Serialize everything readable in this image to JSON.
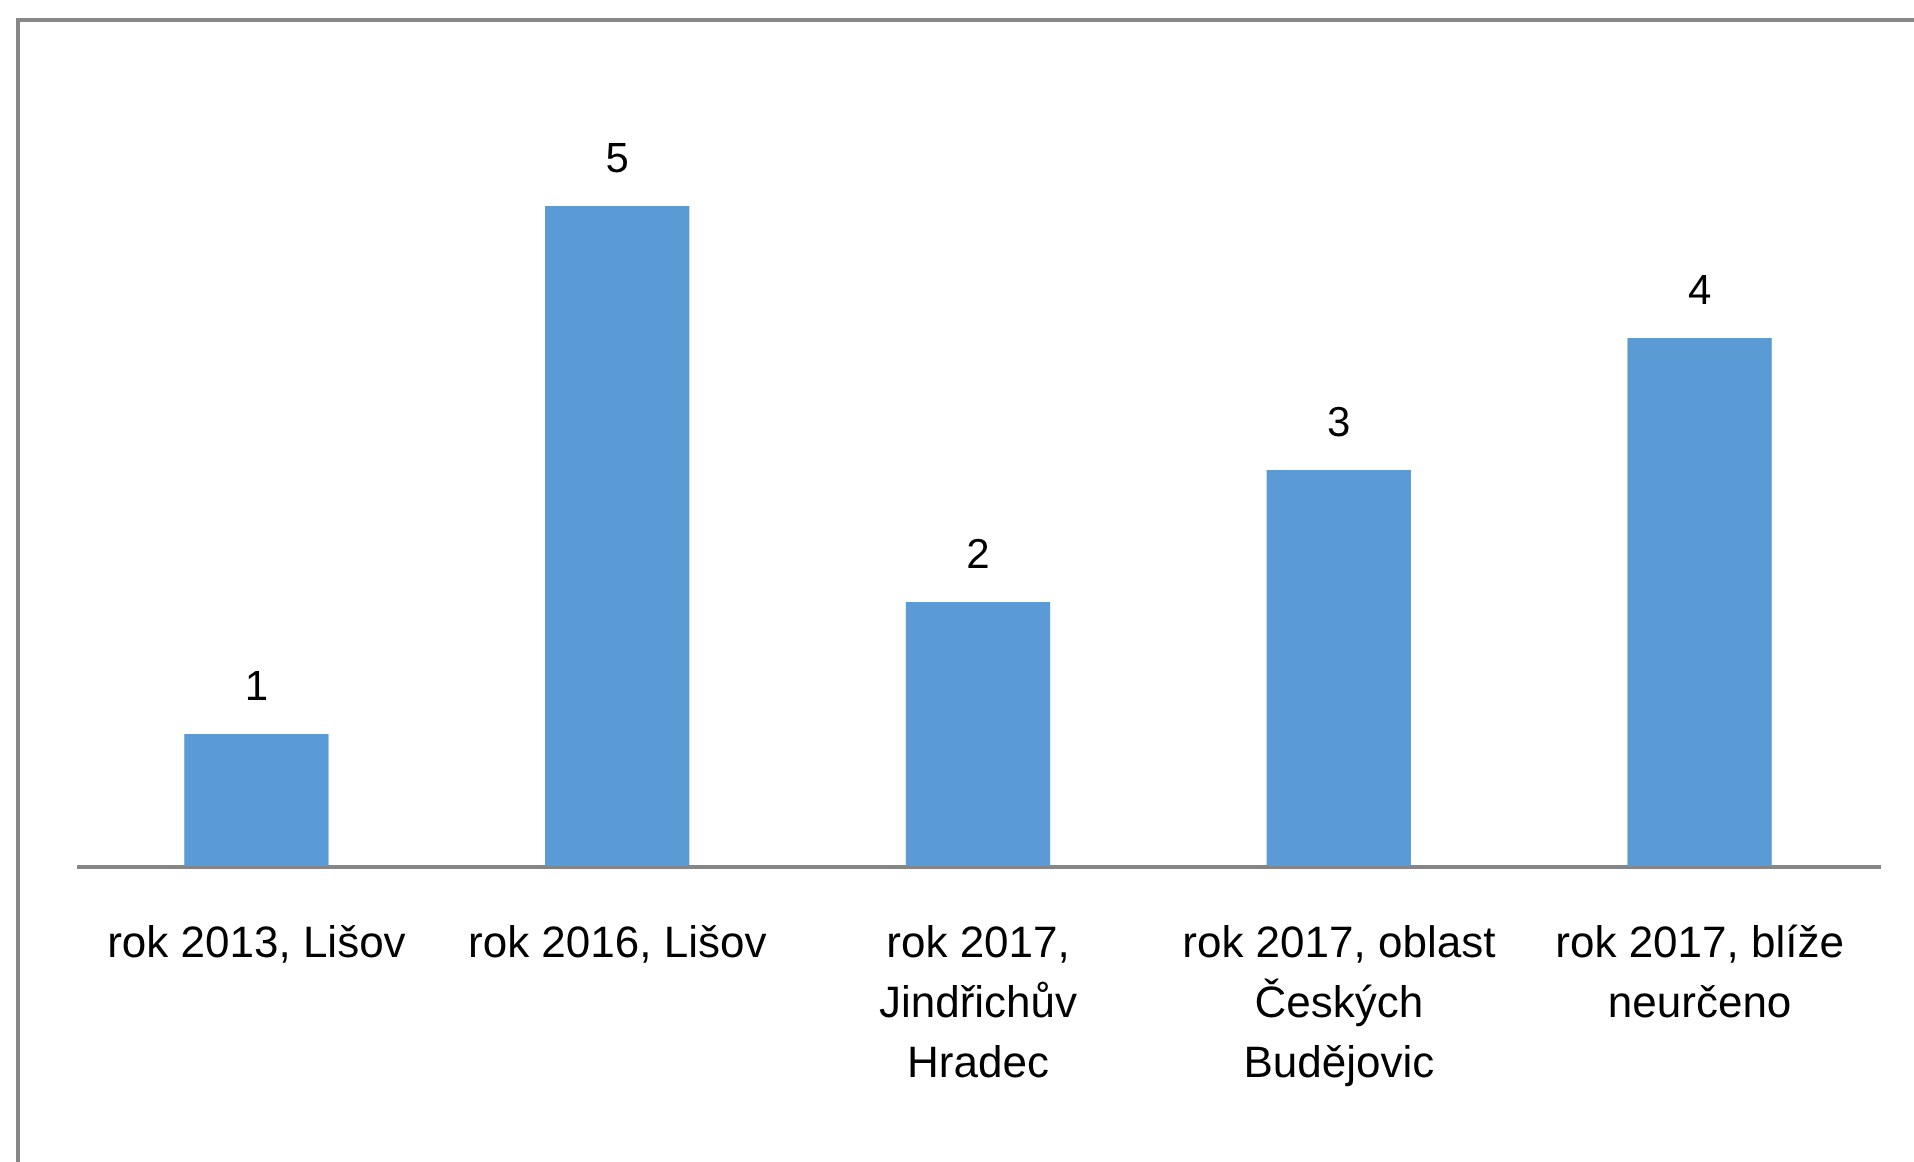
{
  "chart_data": {
    "type": "bar",
    "categories": [
      "rok 2013, Lišov",
      "rok 2016, Lišov",
      "rok 2017, Jindřichův Hradec",
      "rok 2017, oblast Českých Budějovic",
      "rok 2017, blíže neurčeno"
    ],
    "values": [
      1,
      5,
      2,
      3,
      4
    ],
    "color": "#5b9bd5",
    "data_labels": true,
    "tick_labels": "x"
  }
}
